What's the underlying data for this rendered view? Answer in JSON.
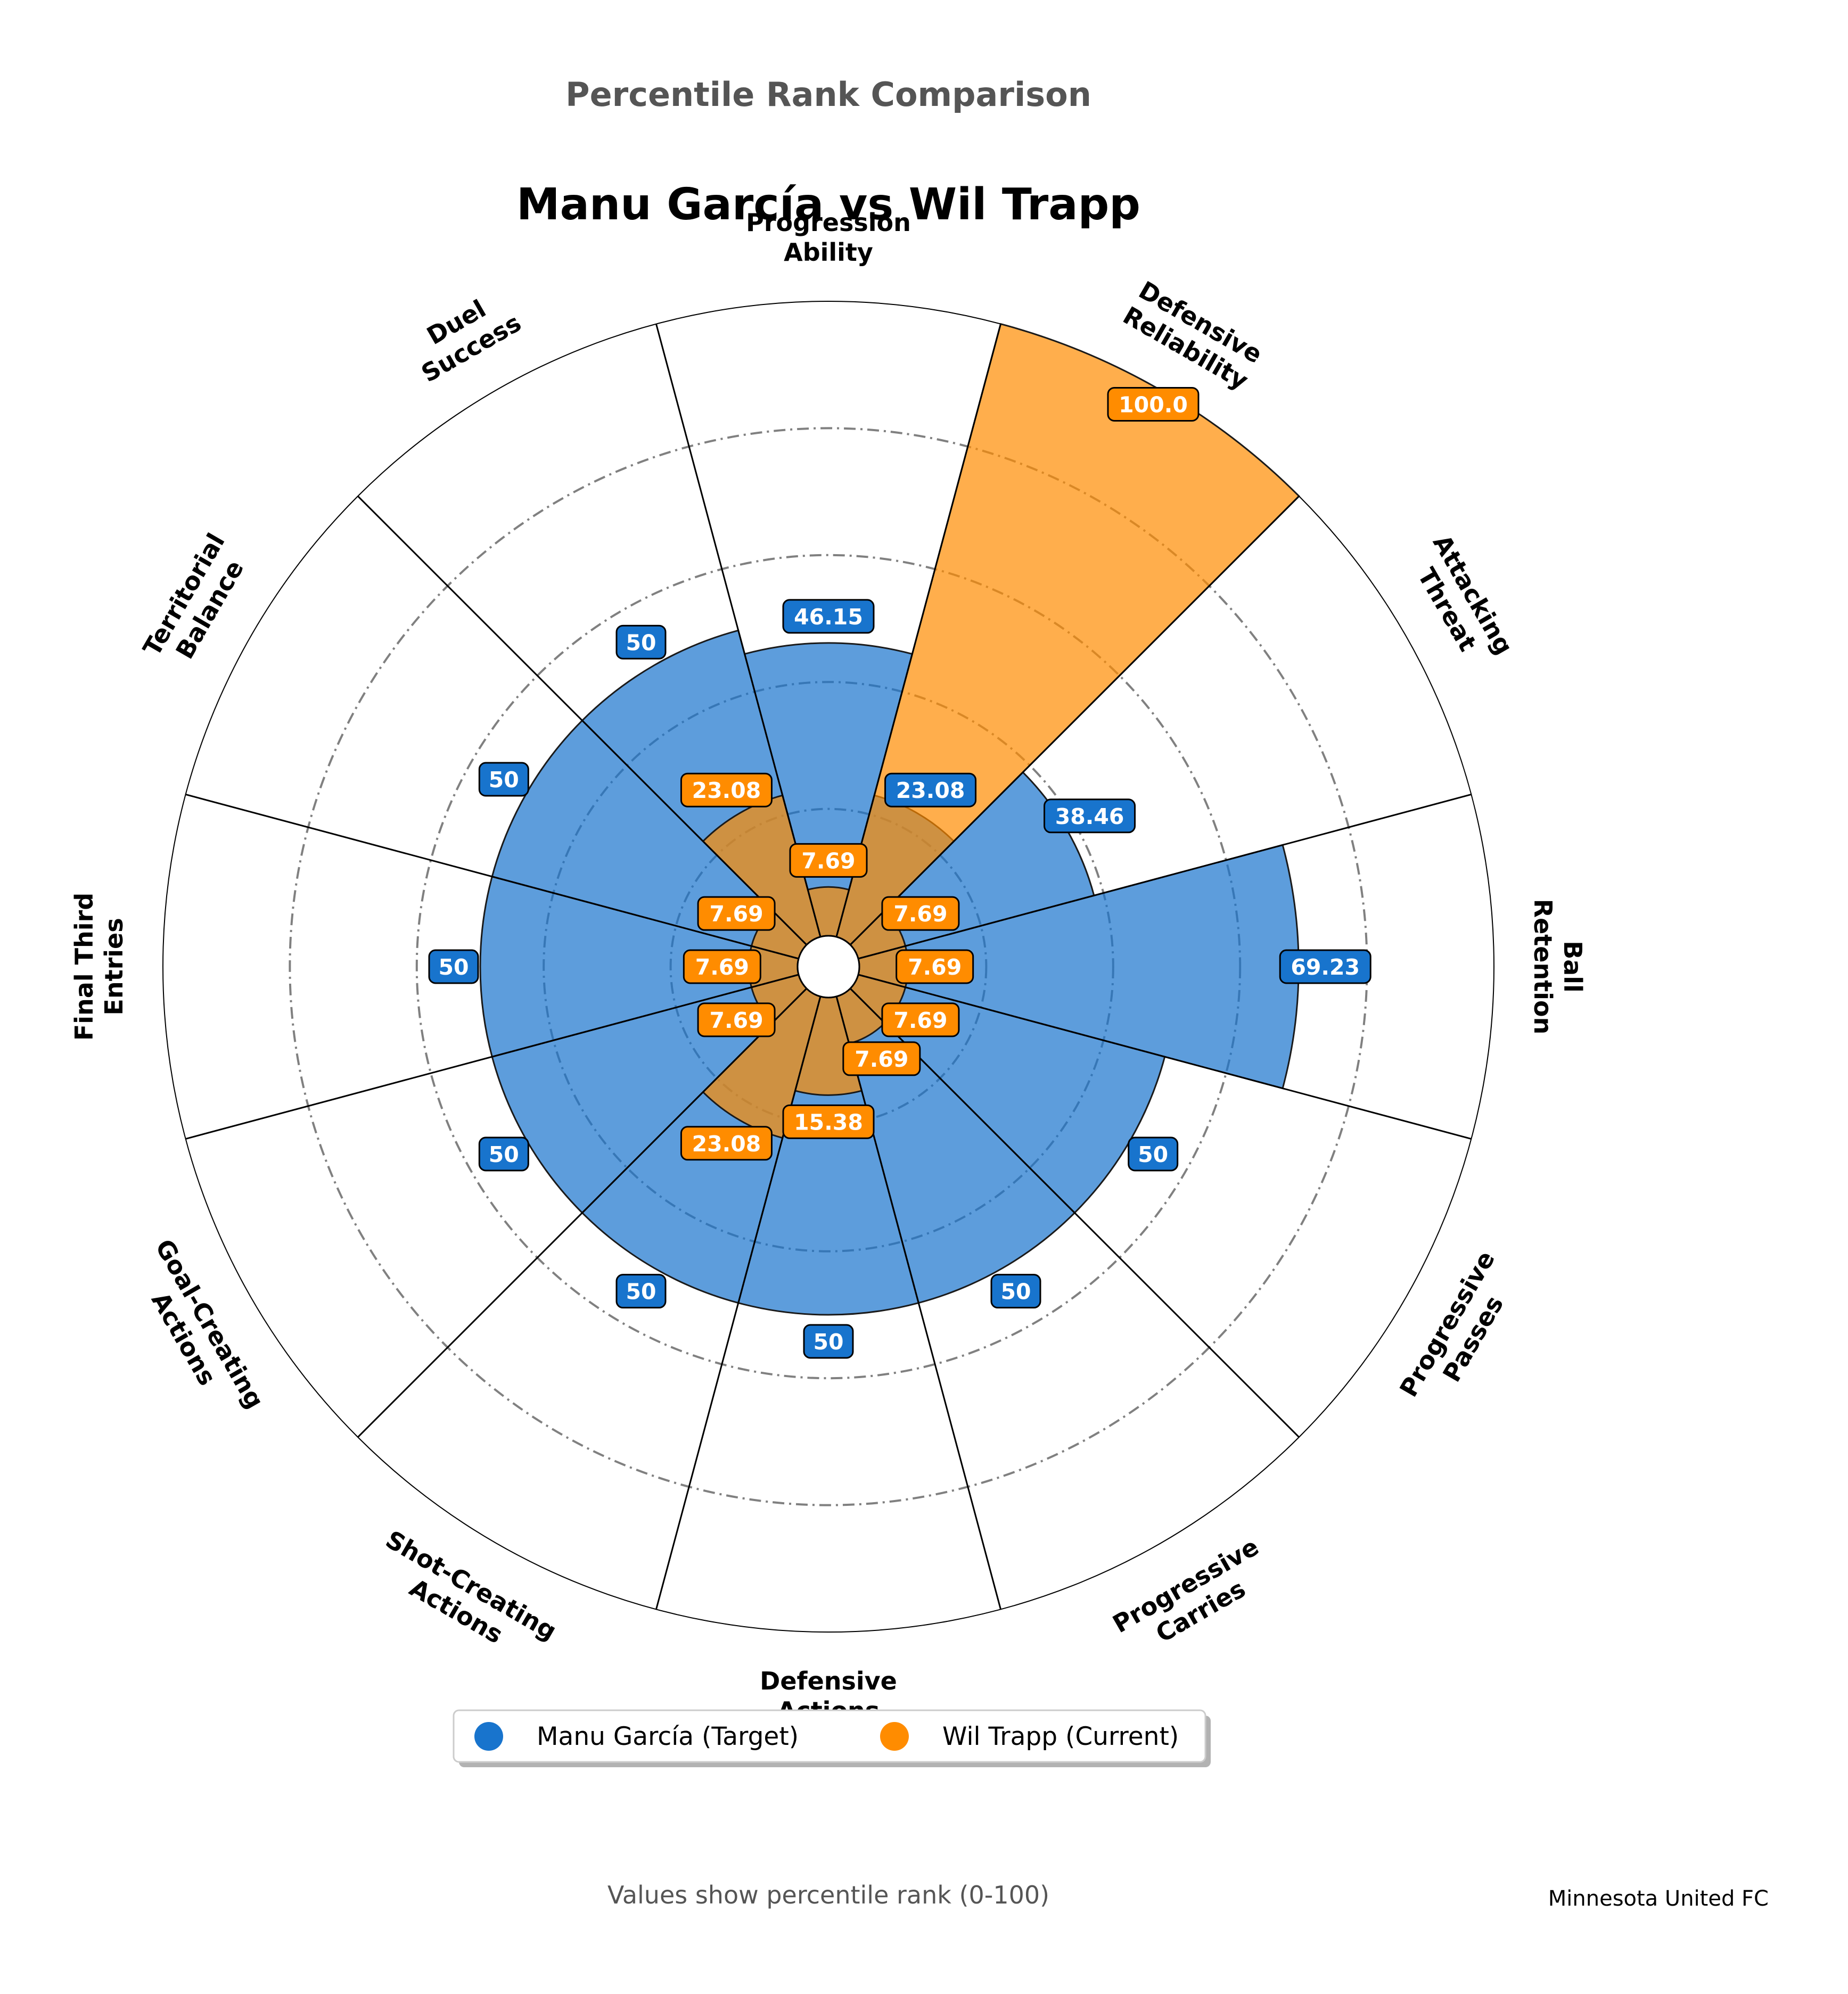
{
  "suptitle": "Percentile Rank Comparison",
  "footer_note": "Values show percentile rank (0-100)",
  "credit": "Minnesota United FC",
  "chart_data": {
    "type": "polar-bar",
    "title": "Manu García vs Wil Trapp",
    "rlim": [
      0,
      100
    ],
    "gridlines": [
      20,
      40,
      60,
      80
    ],
    "categories": [
      "Progression\nAbility",
      "Defensive\nReliability",
      "Attacking\nThreat",
      "Ball\nRetention",
      "Progressive\nPasses",
      "Progressive\nCarries",
      "Defensive\nActions",
      "Shot-Creating\nActions",
      "Goal-Creating\nActions",
      "Final Third\nEntries",
      "Territorial\nBalance",
      "Duel\nSuccess"
    ],
    "series": [
      {
        "name": "Manu García (Target)",
        "color": "#1874cd",
        "values": [
          46.15,
          23.08,
          38.46,
          69.23,
          50,
          50,
          50,
          50,
          50,
          50,
          50,
          50
        ],
        "labels": [
          "46.15",
          "23.08",
          "38.46",
          "69.23",
          "50",
          "50",
          "50",
          "50",
          "50",
          "50",
          "50",
          "50"
        ]
      },
      {
        "name": "Wil Trapp (Current)",
        "color": "#ff8c00",
        "values": [
          7.69,
          100.0,
          7.69,
          7.69,
          7.69,
          7.69,
          15.38,
          23.08,
          7.69,
          7.69,
          7.69,
          23.08
        ],
        "labels": [
          "7.69",
          "100.0",
          "7.69",
          "7.69",
          "7.69",
          "7.69",
          "15.38",
          "23.08",
          "7.69",
          "7.69",
          "7.69",
          "23.08"
        ]
      }
    ],
    "legend": "bottom-center"
  }
}
